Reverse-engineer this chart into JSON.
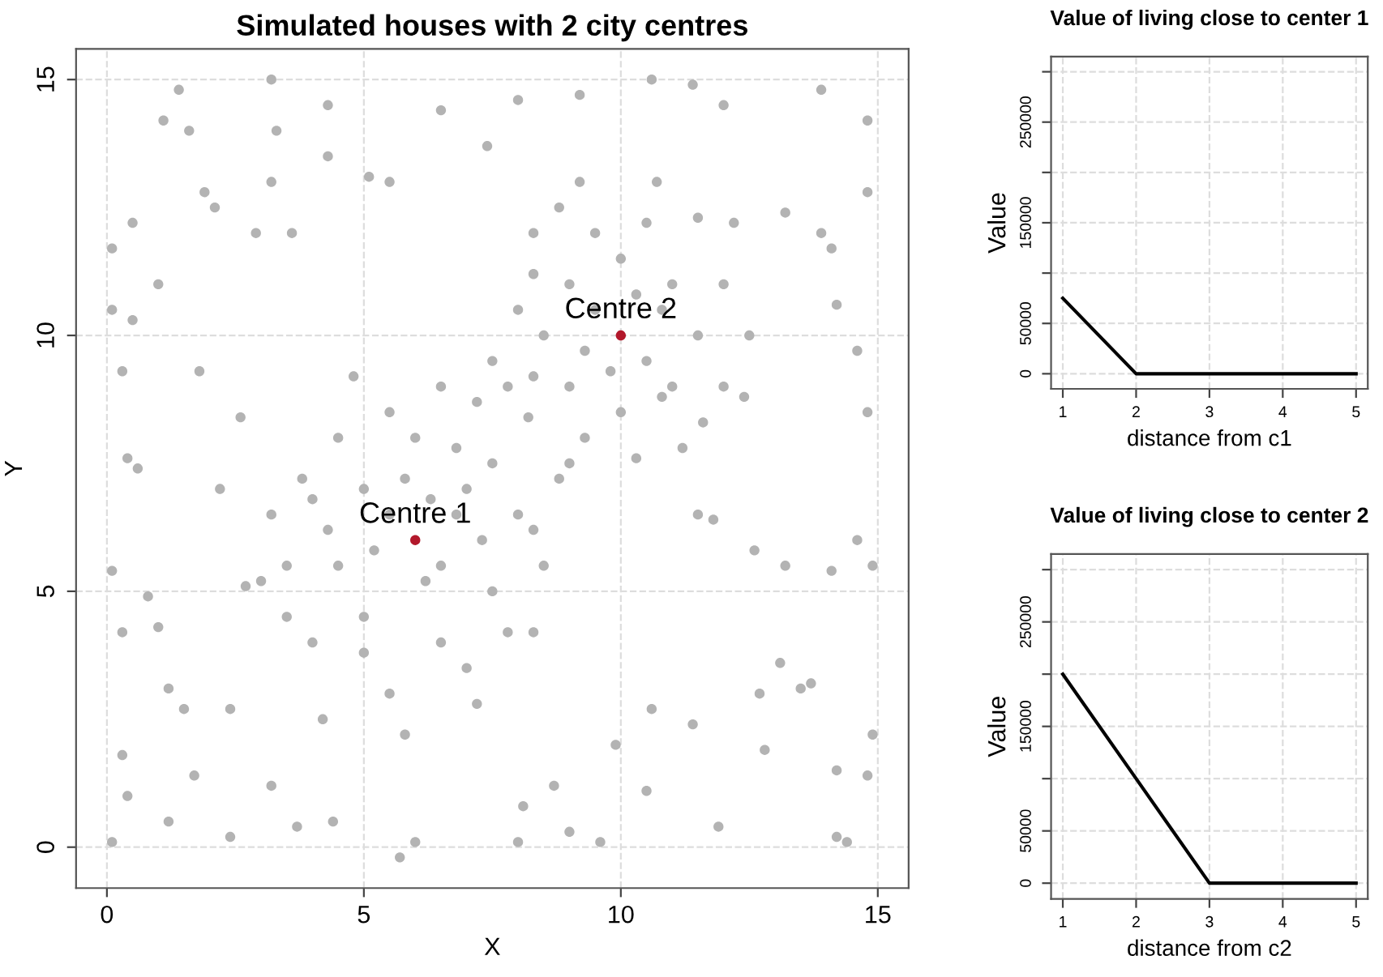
{
  "chart_data": [
    {
      "type": "scatter",
      "title": "Simulated houses with 2 city centres",
      "xlabel": "X",
      "ylabel": "Y",
      "xlim": [
        -0.6,
        15.6
      ],
      "ylim": [
        -0.8,
        15.6
      ],
      "xticks": [
        0,
        5,
        10,
        15
      ],
      "yticks": [
        0,
        5,
        10,
        15
      ],
      "grid": true,
      "marker": "circle",
      "legend": false,
      "annotations": [
        {
          "text": "Centre 1",
          "x": 6,
          "y": 6
        },
        {
          "text": "Centre 2",
          "x": 10,
          "y": 10
        }
      ],
      "series": [
        {
          "color": "#b3b3b3",
          "x": [
            0.1,
            0.1,
            0.3,
            0.5,
            0.5,
            1.0,
            1.1,
            1.4,
            1.6,
            1.9,
            2.1,
            2.9,
            3.2,
            3.3,
            4.3,
            4.3,
            3.2,
            0.4,
            0.6,
            0.1,
            0.3,
            0.8,
            1.0,
            1.2,
            0.3,
            0.4,
            0.1,
            1.2,
            1.5,
            1.7,
            2.4,
            2.4,
            3.2,
            3.7,
            4.4,
            5.7,
            6.0,
            8.0,
            8.1,
            9.0,
            9.6,
            10.5,
            11.9,
            14.2,
            14.4,
            14.8,
            14.9,
            13.5,
            13.7,
            12.8,
            14.2,
            13.1,
            14.1,
            14.6,
            14.9,
            14.8,
            14.6,
            14.2,
            14.1,
            14.8,
            14.8,
            13.9,
            13.9,
            12.0,
            10.6,
            11.4,
            9.2,
            8.0,
            7.4,
            6.5,
            5.1,
            5.5,
            13.2,
            13.2,
            12.7,
            11.4,
            12.6,
            11.8,
            8.3,
            8.7,
            9.9,
            10.6,
            2.6,
            2.2,
            3.6,
            1.8,
            2.7,
            3.0,
            5.5,
            6.5,
            5.0,
            7.0,
            4.5,
            7.5,
            5.0,
            6.5,
            4.0,
            8.0,
            6.0,
            5.5,
            3.5,
            4.0,
            7.0,
            5.5,
            6.8,
            7.5,
            8.5,
            4.5,
            3.8,
            6.2,
            5.2,
            6.8,
            7.8,
            5.8,
            4.2,
            7.2,
            8.3,
            3.5,
            4.8,
            6.5,
            7.2,
            5.0,
            6.3,
            5.8,
            7.3,
            4.3,
            3.2,
            8.8,
            8.2,
            7.5,
            9.5,
            10.5,
            9.0,
            11.0,
            9.0,
            11.0,
            10.0,
            10.0,
            8.5,
            11.5,
            9.5,
            10.5,
            11.5,
            8.8,
            12.0,
            12.0,
            11.6,
            9.3,
            10.3,
            11.2,
            8.3,
            8.3,
            9.8,
            10.8,
            9.3,
            10.3,
            10.8,
            12.5,
            12.4,
            9.0,
            11.5,
            8.0,
            7.8,
            12.2,
            10.7,
            9.2,
            8.3
          ],
          "values": [
            11.7,
            10.5,
            9.3,
            12.2,
            10.3,
            11.0,
            14.2,
            14.8,
            14.0,
            12.8,
            12.5,
            12.0,
            15.0,
            14.0,
            14.5,
            13.5,
            13.0,
            7.6,
            7.4,
            5.4,
            4.2,
            4.9,
            4.3,
            3.1,
            1.8,
            1.0,
            0.1,
            0.5,
            2.7,
            1.4,
            2.7,
            0.2,
            1.2,
            0.4,
            0.5,
            -0.2,
            0.1,
            0.1,
            0.8,
            0.3,
            0.1,
            1.1,
            0.4,
            0.2,
            0.1,
            1.4,
            2.2,
            3.1,
            3.2,
            1.9,
            1.5,
            3.6,
            5.4,
            6.0,
            5.5,
            8.5,
            9.7,
            10.6,
            11.7,
            12.8,
            14.2,
            14.8,
            12.0,
            14.5,
            15.0,
            14.9,
            14.7,
            14.6,
            13.7,
            14.4,
            13.1,
            13.0,
            12.4,
            5.5,
            3.0,
            2.4,
            5.8,
            6.4,
            6.2,
            1.2,
            2.0,
            2.7,
            8.4,
            7.0,
            12.0,
            9.3,
            5.1,
            5.2,
            6.5,
            5.5,
            7.0,
            7.0,
            5.5,
            5.0,
            4.5,
            4.0,
            6.8,
            6.5,
            8.0,
            8.5,
            5.5,
            4.0,
            3.5,
            3.0,
            7.8,
            7.5,
            5.5,
            8.0,
            7.2,
            5.2,
            5.8,
            6.5,
            4.2,
            2.2,
            2.5,
            2.8,
            4.2,
            4.5,
            9.2,
            9.0,
            8.7,
            3.8,
            6.8,
            7.2,
            6.0,
            6.2,
            6.5,
            7.2,
            8.4,
            9.5,
            10.5,
            9.5,
            11.0,
            11.0,
            9.0,
            9.0,
            11.5,
            8.5,
            10.0,
            10.0,
            12.0,
            12.2,
            12.3,
            12.5,
            11.0,
            9.0,
            8.3,
            8.0,
            7.6,
            7.8,
            9.2,
            11.2,
            9.3,
            10.5,
            9.7,
            10.8,
            8.8,
            10.0,
            8.8,
            7.5,
            6.5,
            10.5,
            9.0,
            12.2,
            13.0,
            13.0,
            12.0
          ]
        },
        {
          "color": "#b2182b",
          "x": [
            6,
            10
          ],
          "values": [
            6,
            10
          ]
        }
      ]
    },
    {
      "type": "line",
      "title": "Value of living close to center 1",
      "xlabel": "distance from c1",
      "ylabel": "Value",
      "x": [
        1,
        2,
        3,
        4,
        5
      ],
      "xlim": [
        0.84,
        5.16
      ],
      "ylim": [
        -15000,
        315000
      ],
      "xticks": [
        1,
        2,
        3,
        4,
        5
      ],
      "yticks": [
        0,
        50000,
        {
          "value": 100000,
          "label": null
        },
        150000,
        {
          "value": 200000,
          "label": null
        },
        250000,
        {
          "value": 300000,
          "label": null
        }
      ],
      "grid": true,
      "line_style": "solid",
      "marker": "none",
      "series": [
        {
          "color": "#000000",
          "values": [
            75000,
            0,
            0,
            0,
            0
          ]
        }
      ]
    },
    {
      "type": "line",
      "title": "Value of living close to center 2",
      "xlabel": "distance from c2",
      "ylabel": "Value",
      "x": [
        1,
        2,
        3,
        4,
        5
      ],
      "xlim": [
        0.84,
        5.16
      ],
      "ylim": [
        -15000,
        315000
      ],
      "xticks": [
        1,
        2,
        3,
        4,
        5
      ],
      "yticks": [
        0,
        50000,
        {
          "value": 100000,
          "label": null
        },
        150000,
        {
          "value": 200000,
          "label": null
        },
        250000,
        {
          "value": 300000,
          "label": null
        }
      ],
      "grid": true,
      "line_style": "solid",
      "marker": "none",
      "series": [
        {
          "color": "#000000",
          "values": [
            200000,
            100000,
            0,
            0,
            0
          ]
        }
      ]
    }
  ]
}
